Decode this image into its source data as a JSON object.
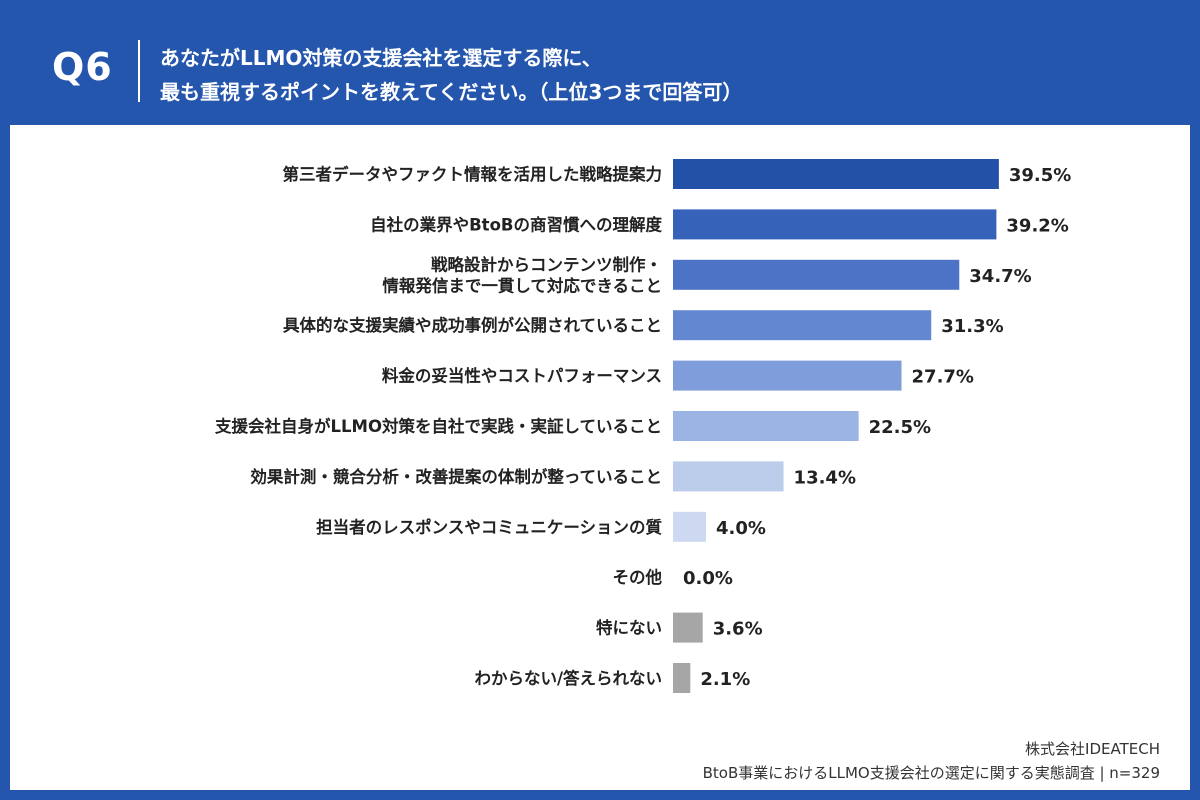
{
  "header": {
    "question_number": "Q6",
    "title_line1": "あなたがLLMO対策の支援会社を選定する際に、",
    "title_line2": "最も重視するポイントを教えてください。（上位3つまで回答可）"
  },
  "footer": {
    "company": "株式会社IDEATECH",
    "survey": "BtoB事業におけるLLMO支援会社の選定に関する実態調査 | n=329"
  },
  "colors": {
    "frame": "#2556ad",
    "gray_bar": "#a6a6a6"
  },
  "chart_data": {
    "type": "bar",
    "orientation": "horizontal",
    "title": "",
    "xlabel": "",
    "ylabel": "",
    "xlim": [
      0,
      40
    ],
    "grid": false,
    "legend": "none",
    "categories": [
      [
        "第三者データやファクト情報を活用した戦略提案力"
      ],
      [
        "自社の業界やBtoBの商習慣への理解度"
      ],
      [
        "戦略設計からコンテンツ制作・",
        "情報発信まで一貫して対応できること"
      ],
      [
        "具体的な支援実績や成功事例が公開されていること"
      ],
      [
        "料金の妥当性やコストパフォーマンス"
      ],
      [
        "支援会社自身がLLMO対策を自社で実践・実証していること"
      ],
      [
        "効果計測・競合分析・改善提案の体制が整っていること"
      ],
      [
        "担当者のレスポンスやコミュニケーションの質"
      ],
      [
        "その他"
      ],
      [
        "特にない"
      ],
      [
        "わからない/答えられない"
      ]
    ],
    "values": [
      39.5,
      39.2,
      34.7,
      31.3,
      27.7,
      22.5,
      13.4,
      4.0,
      0.0,
      3.6,
      2.1
    ],
    "value_labels": [
      "39.5%",
      "39.2%",
      "34.7%",
      "31.3%",
      "27.7%",
      "22.5%",
      "13.4%",
      "4.0%",
      "0.0%",
      "3.6%",
      "2.1%"
    ],
    "bar_colors": [
      "#2351a8",
      "#3762b9",
      "#4c73c6",
      "#6388d1",
      "#7e9dda",
      "#9cb4e3",
      "#bccdec",
      "#ccd9f1",
      "#ccd9f1",
      "#a6a6a6",
      "#a6a6a6"
    ]
  }
}
